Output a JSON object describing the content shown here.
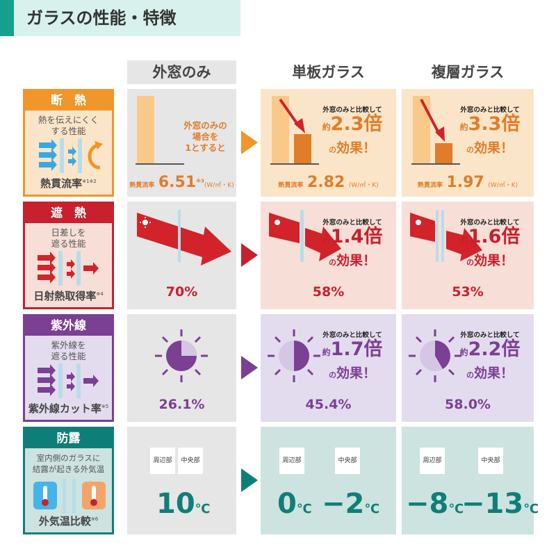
{
  "title": "ガラスの性能・特徴",
  "columns": [
    "外窓のみ",
    "単板ガラス",
    "複層ガラス"
  ],
  "colors": {
    "insulation": "#f0962a",
    "heat": "#c8202c",
    "uv": "#7b3f94",
    "dew": "#0e7f78",
    "gray": "#e6e6e6"
  },
  "rows": [
    {
      "title": "断　熱",
      "desc": [
        "熱を伝えにくく",
        "する性能"
      ],
      "metric": "熱貫流率",
      "note": "※1※2",
      "base": {
        "caption": [
          "外窓のみの",
          "場合を",
          "1とすると"
        ],
        "metric_label": "熱貫流率",
        "value": "6.51",
        "note": "※3",
        "unit": "(W/㎡・K)"
      },
      "single": {
        "compare": "外窓のみと比較して",
        "prefix": "約",
        "factor": "2.3倍",
        "effect_prefix": "の",
        "effect": "効果！",
        "metric_label": "熱貫流率",
        "value": "2.82",
        "unit": "(W/㎡・K)"
      },
      "double": {
        "compare": "外窓のみと比較して",
        "prefix": "約",
        "factor": "3.3倍",
        "effect_prefix": "の",
        "effect": "効果！",
        "metric_label": "熱貫流率",
        "value": "1.97",
        "unit": "(W/㎡・K)"
      }
    },
    {
      "title": "遮　熱",
      "desc": [
        "日差しを",
        "遮る性能"
      ],
      "metric": "日射熱取得率",
      "note": "※4",
      "base": {
        "value": "70%"
      },
      "single": {
        "compare": "外窓のみと比較して",
        "prefix": "約",
        "factor": "1.4倍",
        "effect_prefix": "の",
        "effect": "効果！",
        "value": "58%"
      },
      "double": {
        "compare": "外窓のみと比較して",
        "prefix": "約",
        "factor": "1.6倍",
        "effect_prefix": "の",
        "effect": "効果！",
        "value": "53%"
      }
    },
    {
      "title": "紫外線",
      "desc": [
        "紫外線を",
        "遮る性能"
      ],
      "metric": "紫外線カット率",
      "note": "※5",
      "base": {
        "value": "26.1%"
      },
      "single": {
        "compare": "外窓のみと比較して",
        "prefix": "約",
        "factor": "1.7倍",
        "effect_prefix": "の",
        "effect": "効果！",
        "value": "45.4%"
      },
      "double": {
        "compare": "外窓のみと比較して",
        "prefix": "約",
        "factor": "2.2倍",
        "effect_prefix": "の",
        "effect": "効果！",
        "value": "58.0%"
      }
    },
    {
      "title": "防露",
      "desc": [
        "室内側のガラスに",
        "結露が起きる外気温"
      ],
      "metric": "外気温比較",
      "note": "※6",
      "labels": [
        "周辺部",
        "中央部"
      ],
      "unit": "℃",
      "base": {
        "value": "10"
      },
      "single": {
        "edge": "0",
        "center": "−2"
      },
      "double": {
        "edge": "−8",
        "center": "−13"
      }
    }
  ]
}
